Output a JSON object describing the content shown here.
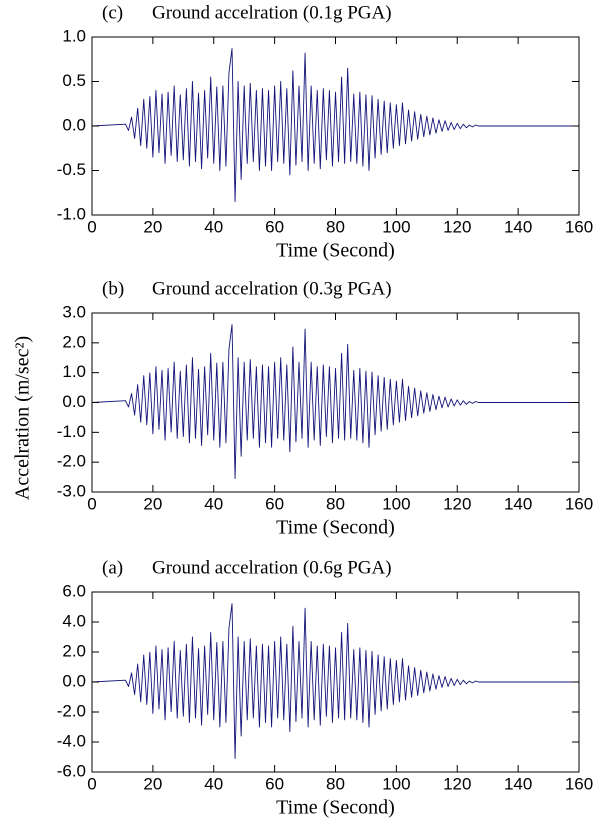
{
  "chart_data": [
    {
      "type": "line",
      "panel": "(c)",
      "title": "Ground accelration (0.1g PGA)",
      "xlabel": "Time (Second)",
      "color": "#14147a",
      "xlim": [
        0,
        160
      ],
      "xticks": [
        0,
        20,
        40,
        60,
        80,
        100,
        120,
        140,
        160
      ],
      "ylim": [
        -1,
        1
      ],
      "yticks": [
        {
          "value": 1,
          "label": "1.0"
        },
        0.5,
        {
          "value": 0,
          "label": "0.0"
        },
        -0.5,
        {
          "value": -1,
          "label": "-1.0"
        }
      ],
      "x": [
        0,
        11,
        12,
        13,
        14,
        15,
        16,
        17,
        18,
        19,
        20,
        21,
        22,
        23,
        24,
        25,
        26,
        27,
        28,
        29,
        30,
        31,
        32,
        33,
        34,
        35,
        36,
        37,
        38,
        39,
        40,
        41,
        42,
        43,
        44,
        45,
        46,
        47,
        48,
        49,
        50,
        51,
        52,
        53,
        54,
        55,
        56,
        57,
        58,
        59,
        60,
        61,
        62,
        63,
        64,
        65,
        66,
        67,
        68,
        69,
        70,
        71,
        72,
        73,
        74,
        75,
        76,
        77,
        78,
        79,
        80,
        81,
        82,
        83,
        84,
        85,
        86,
        87,
        88,
        89,
        90,
        91,
        92,
        93,
        94,
        95,
        96,
        97,
        98,
        99,
        100,
        101,
        102,
        103,
        104,
        105,
        106,
        107,
        108,
        109,
        110,
        111,
        112,
        113,
        114,
        115,
        116,
        117,
        118,
        119,
        120,
        121,
        122,
        123,
        124,
        125,
        126,
        127,
        160
      ],
      "values": [
        0,
        0.02,
        -0.05,
        0.1,
        -0.14,
        0.2,
        -0.22,
        0.3,
        -0.25,
        0.33,
        -0.35,
        0.4,
        -0.3,
        0.36,
        -0.42,
        0.38,
        -0.33,
        0.45,
        -0.4,
        0.35,
        -0.38,
        0.42,
        -0.45,
        0.5,
        -0.4,
        0.37,
        -0.48,
        0.4,
        -0.36,
        0.55,
        -0.42,
        0.44,
        -0.5,
        0.45,
        -0.45,
        0.6,
        0.87,
        -0.85,
        0.5,
        -0.6,
        0.45,
        -0.42,
        0.48,
        -0.4,
        0.4,
        -0.5,
        0.42,
        -0.45,
        0.4,
        -0.5,
        0.45,
        -0.4,
        0.5,
        -0.42,
        0.42,
        -0.55,
        0.62,
        -0.44,
        0.45,
        -0.4,
        0.82,
        -0.5,
        0.45,
        -0.42,
        0.4,
        -0.48,
        0.42,
        -0.38,
        0.4,
        -0.45,
        0.38,
        -0.4,
        0.55,
        -0.42,
        0.65,
        -0.4,
        0.36,
        -0.42,
        0.38,
        -0.45,
        0.35,
        -0.5,
        0.34,
        -0.36,
        0.3,
        -0.32,
        0.28,
        -0.3,
        0.26,
        -0.25,
        0.24,
        -0.22,
        0.26,
        -0.2,
        0.18,
        -0.17,
        0.16,
        -0.15,
        0.13,
        -0.12,
        0.11,
        -0.1,
        0.09,
        -0.08,
        0.07,
        -0.06,
        0.06,
        -0.05,
        0.04,
        -0.04,
        0.03,
        -0.03,
        0.02,
        -0.02,
        0.01,
        -0.01,
        0.01,
        0,
        0
      ]
    },
    {
      "type": "line",
      "panel": "(b)",
      "title": "Ground accelration (0.3g PGA)",
      "xlabel": "Time (Second)",
      "ylabel": "Accelration (m/sec²)",
      "color": "#14147a",
      "xlim": [
        0,
        160
      ],
      "xticks": [
        0,
        20,
        40,
        60,
        80,
        100,
        120,
        140,
        160
      ],
      "ylim": [
        -3,
        3
      ],
      "yticks": [
        {
          "value": 3,
          "label": "3.0"
        },
        {
          "value": 2,
          "label": "2.0"
        },
        {
          "value": 1,
          "label": "1.0"
        },
        {
          "value": 0,
          "label": "0.0"
        },
        {
          "value": -1,
          "label": "-1.0"
        },
        {
          "value": -2,
          "label": "-2.0"
        },
        {
          "value": -3,
          "label": "-3.0"
        }
      ],
      "x": [
        0,
        11,
        12,
        13,
        14,
        15,
        16,
        17,
        18,
        19,
        20,
        21,
        22,
        23,
        24,
        25,
        26,
        27,
        28,
        29,
        30,
        31,
        32,
        33,
        34,
        35,
        36,
        37,
        38,
        39,
        40,
        41,
        42,
        43,
        44,
        45,
        46,
        47,
        48,
        49,
        50,
        51,
        52,
        53,
        54,
        55,
        56,
        57,
        58,
        59,
        60,
        61,
        62,
        63,
        64,
        65,
        66,
        67,
        68,
        69,
        70,
        71,
        72,
        73,
        74,
        75,
        76,
        77,
        78,
        79,
        80,
        81,
        82,
        83,
        84,
        85,
        86,
        87,
        88,
        89,
        90,
        91,
        92,
        93,
        94,
        95,
        96,
        97,
        98,
        99,
        100,
        101,
        102,
        103,
        104,
        105,
        106,
        107,
        108,
        109,
        110,
        111,
        112,
        113,
        114,
        115,
        116,
        117,
        118,
        119,
        120,
        121,
        122,
        123,
        124,
        125,
        126,
        127,
        160
      ],
      "values": [
        0,
        0.06,
        -0.15,
        0.3,
        -0.42,
        0.6,
        -0.66,
        0.9,
        -0.75,
        0.99,
        -1.05,
        1.2,
        -0.9,
        1.08,
        -1.26,
        1.14,
        -0.99,
        1.35,
        -1.2,
        1.05,
        -1.14,
        1.26,
        -1.35,
        1.5,
        -1.2,
        1.11,
        -1.44,
        1.2,
        -1.08,
        1.65,
        -1.26,
        1.32,
        -1.5,
        1.35,
        -1.35,
        1.8,
        2.61,
        -2.55,
        1.5,
        -1.8,
        1.35,
        -1.26,
        1.44,
        -1.2,
        1.2,
        -1.5,
        1.26,
        -1.35,
        1.2,
        -1.5,
        1.35,
        -1.2,
        1.5,
        -1.26,
        1.26,
        -1.65,
        1.86,
        -1.32,
        1.35,
        -1.2,
        2.46,
        -1.5,
        1.35,
        -1.26,
        1.2,
        -1.44,
        1.26,
        -1.14,
        1.2,
        -1.35,
        1.14,
        -1.2,
        1.65,
        -1.26,
        1.95,
        -1.2,
        1.08,
        -1.26,
        1.14,
        -1.35,
        1.05,
        -1.5,
        1.02,
        -1.08,
        0.9,
        -0.96,
        0.84,
        -0.9,
        0.78,
        -0.75,
        0.72,
        -0.66,
        0.78,
        -0.6,
        0.54,
        -0.51,
        0.48,
        -0.45,
        0.39,
        -0.36,
        0.33,
        -0.3,
        0.27,
        -0.24,
        0.21,
        -0.18,
        0.18,
        -0.15,
        0.12,
        -0.12,
        0.09,
        -0.09,
        0.06,
        -0.06,
        0.03,
        -0.03,
        0.03,
        0,
        0
      ]
    },
    {
      "type": "line",
      "panel": "(a)",
      "title": "Ground accelration (0.6g PGA)",
      "xlabel": "Time (Second)",
      "color": "#14147a",
      "xlim": [
        0,
        160
      ],
      "xticks": [
        0,
        20,
        40,
        60,
        80,
        100,
        120,
        140,
        160
      ],
      "ylim": [
        -6,
        6
      ],
      "yticks": [
        {
          "value": 6,
          "label": "6.0"
        },
        {
          "value": 4,
          "label": "4.0"
        },
        {
          "value": 2,
          "label": "2.0"
        },
        {
          "value": 0,
          "label": "0.0"
        },
        {
          "value": -2,
          "label": "-2.0"
        },
        {
          "value": -4,
          "label": "-4.0"
        },
        {
          "value": -6,
          "label": "-6.0"
        }
      ],
      "x": [
        0,
        11,
        12,
        13,
        14,
        15,
        16,
        17,
        18,
        19,
        20,
        21,
        22,
        23,
        24,
        25,
        26,
        27,
        28,
        29,
        30,
        31,
        32,
        33,
        34,
        35,
        36,
        37,
        38,
        39,
        40,
        41,
        42,
        43,
        44,
        45,
        46,
        47,
        48,
        49,
        50,
        51,
        52,
        53,
        54,
        55,
        56,
        57,
        58,
        59,
        60,
        61,
        62,
        63,
        64,
        65,
        66,
        67,
        68,
        69,
        70,
        71,
        72,
        73,
        74,
        75,
        76,
        77,
        78,
        79,
        80,
        81,
        82,
        83,
        84,
        85,
        86,
        87,
        88,
        89,
        90,
        91,
        92,
        93,
        94,
        95,
        96,
        97,
        98,
        99,
        100,
        101,
        102,
        103,
        104,
        105,
        106,
        107,
        108,
        109,
        110,
        111,
        112,
        113,
        114,
        115,
        116,
        117,
        118,
        119,
        120,
        121,
        122,
        123,
        124,
        125,
        126,
        127,
        160
      ],
      "values": [
        0,
        0.12,
        -0.3,
        0.6,
        -0.84,
        1.2,
        -1.32,
        1.8,
        -1.5,
        1.98,
        -2.1,
        2.4,
        -1.8,
        2.16,
        -2.52,
        2.28,
        -1.98,
        2.7,
        -2.4,
        2.1,
        -2.28,
        2.52,
        -2.7,
        3,
        -2.4,
        2.22,
        -2.88,
        2.4,
        -2.16,
        3.3,
        -2.52,
        2.64,
        -3,
        2.7,
        -2.7,
        3.6,
        5.22,
        -5.1,
        3,
        -3.6,
        2.7,
        -2.52,
        2.88,
        -2.4,
        2.4,
        -3,
        2.52,
        -2.7,
        2.4,
        -3,
        2.7,
        -2.4,
        3,
        -2.52,
        2.52,
        -3.3,
        3.72,
        -2.64,
        2.7,
        -2.4,
        4.92,
        -3,
        2.7,
        -2.52,
        2.4,
        -2.88,
        2.52,
        -2.28,
        2.4,
        -2.7,
        2.28,
        -2.4,
        3.3,
        -2.52,
        3.9,
        -2.4,
        2.16,
        -2.52,
        2.28,
        -2.7,
        2.1,
        -3,
        2.04,
        -2.16,
        1.8,
        -1.92,
        1.68,
        -1.8,
        1.56,
        -1.5,
        1.44,
        -1.32,
        1.56,
        -1.2,
        1.08,
        -1.02,
        0.96,
        -0.9,
        0.78,
        -0.72,
        0.66,
        -0.6,
        0.54,
        -0.48,
        0.42,
        -0.36,
        0.36,
        -0.3,
        0.24,
        -0.24,
        0.18,
        -0.18,
        0.12,
        -0.12,
        0.06,
        -0.06,
        0.06,
        0,
        0
      ]
    }
  ]
}
